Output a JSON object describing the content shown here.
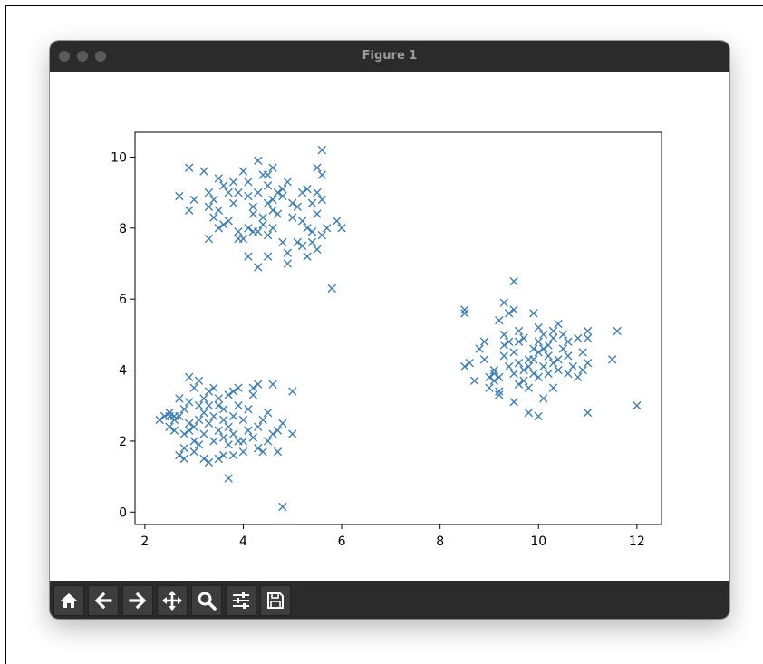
{
  "window": {
    "title": "Figure 1"
  },
  "toolbar": {
    "buttons": [
      {
        "icon": "home-icon",
        "name": "home-button"
      },
      {
        "icon": "back-arrow-icon",
        "name": "back-button"
      },
      {
        "icon": "forward-arrow-icon",
        "name": "forward-button"
      },
      {
        "icon": "move-icon",
        "name": "pan-button"
      },
      {
        "icon": "magnifier-icon",
        "name": "zoom-button"
      },
      {
        "icon": "sliders-icon",
        "name": "configure-subplots-button"
      },
      {
        "icon": "floppy-disk-icon",
        "name": "save-button"
      }
    ]
  },
  "colors": {
    "marker": "#3f7fb3",
    "titlebar": "#2b2b2b",
    "toolbar": "#2b2b2b"
  },
  "chart_data": {
    "type": "scatter",
    "title": "",
    "xlabel": "",
    "ylabel": "",
    "marker": "x",
    "grid": false,
    "xlim": [
      1.8,
      12.5
    ],
    "ylim": [
      -0.35,
      10.7
    ],
    "xticks": [
      "2",
      "4",
      "6",
      "8",
      "10",
      "12"
    ],
    "yticks": [
      "0",
      "2",
      "4",
      "6",
      "8",
      "10"
    ],
    "series": [
      {
        "points": [
          [
            2.4,
            2.7
          ],
          [
            2.5,
            2.8
          ],
          [
            2.6,
            2.6
          ],
          [
            2.5,
            2.4
          ],
          [
            2.7,
            2.7
          ],
          [
            2.3,
            2.6
          ],
          [
            2.8,
            2.2
          ],
          [
            2.9,
            2.5
          ],
          [
            3.0,
            2.4
          ],
          [
            2.8,
            2.9
          ],
          [
            3.1,
            3.0
          ],
          [
            3.2,
            2.8
          ],
          [
            3.3,
            3.4
          ],
          [
            3.2,
            3.2
          ],
          [
            3.0,
            3.5
          ],
          [
            2.9,
            3.8
          ],
          [
            3.1,
            3.7
          ],
          [
            3.4,
            3.5
          ],
          [
            3.5,
            3.2
          ],
          [
            3.7,
            3.3
          ],
          [
            3.8,
            3.4
          ],
          [
            3.9,
            3.5
          ],
          [
            4.2,
            3.5
          ],
          [
            4.3,
            3.6
          ],
          [
            4.6,
            3.6
          ],
          [
            5.0,
            3.4
          ],
          [
            3.6,
            2.9
          ],
          [
            3.8,
            2.7
          ],
          [
            4.0,
            2.6
          ],
          [
            4.1,
            2.3
          ],
          [
            3.5,
            2.3
          ],
          [
            3.4,
            2.0
          ],
          [
            3.2,
            2.2
          ],
          [
            3.0,
            2.0
          ],
          [
            2.8,
            1.8
          ],
          [
            2.7,
            1.6
          ],
          [
            2.8,
            1.5
          ],
          [
            3.0,
            1.7
          ],
          [
            3.2,
            1.5
          ],
          [
            3.3,
            1.4
          ],
          [
            3.5,
            1.5
          ],
          [
            3.6,
            1.6
          ],
          [
            3.8,
            1.6
          ],
          [
            4.0,
            1.7
          ],
          [
            4.3,
            1.8
          ],
          [
            4.4,
            1.7
          ],
          [
            4.5,
            2.0
          ],
          [
            4.6,
            2.2
          ],
          [
            4.3,
            2.4
          ],
          [
            4.5,
            2.8
          ],
          [
            4.7,
            2.3
          ],
          [
            5.0,
            2.2
          ],
          [
            4.7,
            1.7
          ],
          [
            3.7,
            0.95
          ],
          [
            4.8,
            0.15
          ],
          [
            3.9,
            2.0
          ],
          [
            3.6,
            2.1
          ],
          [
            3.3,
            2.5
          ],
          [
            3.1,
            2.6
          ],
          [
            2.6,
            2.3
          ],
          [
            2.5,
            2.7
          ],
          [
            2.9,
            3.1
          ],
          [
            3.4,
            2.7
          ],
          [
            3.7,
            2.4
          ],
          [
            4.1,
            2.9
          ],
          [
            3.9,
            3.0
          ],
          [
            4.2,
            3.3
          ],
          [
            4.4,
            2.6
          ],
          [
            3.6,
            2.6
          ],
          [
            3.3,
            3.0
          ],
          [
            2.7,
            3.2
          ],
          [
            2.6,
            2.7
          ],
          [
            3.8,
            2.2
          ],
          [
            4.0,
            2.0
          ],
          [
            3.7,
            1.9
          ],
          [
            3.1,
            1.9
          ],
          [
            2.9,
            2.3
          ],
          [
            4.2,
            2.1
          ],
          [
            4.8,
            2.5
          ],
          [
            3.5,
            3.0
          ],
          [
            4.1,
            8.9
          ],
          [
            4.2,
            8.6
          ],
          [
            4.4,
            8.3
          ],
          [
            4.5,
            8.7
          ],
          [
            4.6,
            8.8
          ],
          [
            4.8,
            8.9
          ],
          [
            4.5,
            9.2
          ],
          [
            4.3,
            9.0
          ],
          [
            4.1,
            9.3
          ],
          [
            4.0,
            9.6
          ],
          [
            4.3,
            9.9
          ],
          [
            4.4,
            9.5
          ],
          [
            4.6,
            9.7
          ],
          [
            4.9,
            9.3
          ],
          [
            5.2,
            9.0
          ],
          [
            5.4,
            8.7
          ],
          [
            5.5,
            8.4
          ],
          [
            5.5,
            9.0
          ],
          [
            5.6,
            9.5
          ],
          [
            5.6,
            10.2
          ],
          [
            5.5,
            9.7
          ],
          [
            5.3,
            9.1
          ],
          [
            5.0,
            8.7
          ],
          [
            4.7,
            8.4
          ],
          [
            4.4,
            8.1
          ],
          [
            4.2,
            7.9
          ],
          [
            4.0,
            7.7
          ],
          [
            3.9,
            7.9
          ],
          [
            3.7,
            8.2
          ],
          [
            3.5,
            8.5
          ],
          [
            3.4,
            8.8
          ],
          [
            3.3,
            9.0
          ],
          [
            3.6,
            9.2
          ],
          [
            3.8,
            9.3
          ],
          [
            3.9,
            9.0
          ],
          [
            3.5,
            9.4
          ],
          [
            3.2,
            9.6
          ],
          [
            2.9,
            9.7
          ],
          [
            2.9,
            8.5
          ],
          [
            2.7,
            8.9
          ],
          [
            3.0,
            8.8
          ],
          [
            3.3,
            8.6
          ],
          [
            3.4,
            8.3
          ],
          [
            3.6,
            8.1
          ],
          [
            3.3,
            7.7
          ],
          [
            3.9,
            7.7
          ],
          [
            4.1,
            8.0
          ],
          [
            4.3,
            7.9
          ],
          [
            4.5,
            7.8
          ],
          [
            4.6,
            8.0
          ],
          [
            4.8,
            7.6
          ],
          [
            4.9,
            7.3
          ],
          [
            5.1,
            7.6
          ],
          [
            5.2,
            7.5
          ],
          [
            5.4,
            7.6
          ],
          [
            5.5,
            7.4
          ],
          [
            5.4,
            7.9
          ],
          [
            5.6,
            7.8
          ],
          [
            5.7,
            8.0
          ],
          [
            5.9,
            8.2
          ],
          [
            6.0,
            8.0
          ],
          [
            5.3,
            7.2
          ],
          [
            4.9,
            7.0
          ],
          [
            4.5,
            7.2
          ],
          [
            4.3,
            6.9
          ],
          [
            4.1,
            7.2
          ],
          [
            5.8,
            6.3
          ],
          [
            4.2,
            8.4
          ],
          [
            4.6,
            8.5
          ],
          [
            4.7,
            9.0
          ],
          [
            5.0,
            8.3
          ],
          [
            5.2,
            8.2
          ],
          [
            5.3,
            8.0
          ],
          [
            3.8,
            8.7
          ],
          [
            3.7,
            9.0
          ],
          [
            3.5,
            8.0
          ],
          [
            5.1,
            8.6
          ],
          [
            5.6,
            8.8
          ],
          [
            4.5,
            9.5
          ],
          [
            4.8,
            9.1
          ],
          [
            8.5,
            5.6
          ],
          [
            8.5,
            5.7
          ],
          [
            8.5,
            4.1
          ],
          [
            8.6,
            4.2
          ],
          [
            8.7,
            3.7
          ],
          [
            8.8,
            4.6
          ],
          [
            8.9,
            4.8
          ],
          [
            9.0,
            3.8
          ],
          [
            9.0,
            3.5
          ],
          [
            9.1,
            3.9
          ],
          [
            9.1,
            4.0
          ],
          [
            9.2,
            3.3
          ],
          [
            9.2,
            3.4
          ],
          [
            9.2,
            3.8
          ],
          [
            9.3,
            4.4
          ],
          [
            9.3,
            4.7
          ],
          [
            9.3,
            5.0
          ],
          [
            9.2,
            5.4
          ],
          [
            9.3,
            5.9
          ],
          [
            9.4,
            5.6
          ],
          [
            9.5,
            6.5
          ],
          [
            9.5,
            5.7
          ],
          [
            9.6,
            5.1
          ],
          [
            9.6,
            4.8
          ],
          [
            9.5,
            4.5
          ],
          [
            9.6,
            4.2
          ],
          [
            9.7,
            4.0
          ],
          [
            9.5,
            3.9
          ],
          [
            9.6,
            3.6
          ],
          [
            9.5,
            3.1
          ],
          [
            9.7,
            3.7
          ],
          [
            9.8,
            3.5
          ],
          [
            9.9,
            3.9
          ],
          [
            9.8,
            4.3
          ],
          [
            9.9,
            4.6
          ],
          [
            10.0,
            4.5
          ],
          [
            10.0,
            4.8
          ],
          [
            10.0,
            5.2
          ],
          [
            9.9,
            5.6
          ],
          [
            10.1,
            5.0
          ],
          [
            10.2,
            4.7
          ],
          [
            10.3,
            5.1
          ],
          [
            10.4,
            5.3
          ],
          [
            10.3,
            4.9
          ],
          [
            10.2,
            4.4
          ],
          [
            10.3,
            4.2
          ],
          [
            10.4,
            4.0
          ],
          [
            10.5,
            4.6
          ],
          [
            10.6,
            4.4
          ],
          [
            10.7,
            4.1
          ],
          [
            10.8,
            4.9
          ],
          [
            10.9,
            4.5
          ],
          [
            11.0,
            4.2
          ],
          [
            11.0,
            4.9
          ],
          [
            11.0,
            5.1
          ],
          [
            10.9,
            4.0
          ],
          [
            10.6,
            3.9
          ],
          [
            10.3,
            3.5
          ],
          [
            10.1,
            3.2
          ],
          [
            10.0,
            3.8
          ],
          [
            9.8,
            2.8
          ],
          [
            10.0,
            2.7
          ],
          [
            11.0,
            2.8
          ],
          [
            11.5,
            4.3
          ],
          [
            11.6,
            5.1
          ],
          [
            12.0,
            3.0
          ],
          [
            10.4,
            4.3
          ],
          [
            10.2,
            3.9
          ],
          [
            9.4,
            4.1
          ],
          [
            9.8,
            4.1
          ],
          [
            10.1,
            4.1
          ],
          [
            9.9,
            4.3
          ],
          [
            10.5,
            5.0
          ],
          [
            9.7,
            4.9
          ],
          [
            9.1,
            3.7
          ],
          [
            8.9,
            4.3
          ],
          [
            10.1,
            4.6
          ],
          [
            10.8,
            3.8
          ],
          [
            10.6,
            4.8
          ],
          [
            9.4,
            4.8
          ]
        ]
      }
    ]
  }
}
